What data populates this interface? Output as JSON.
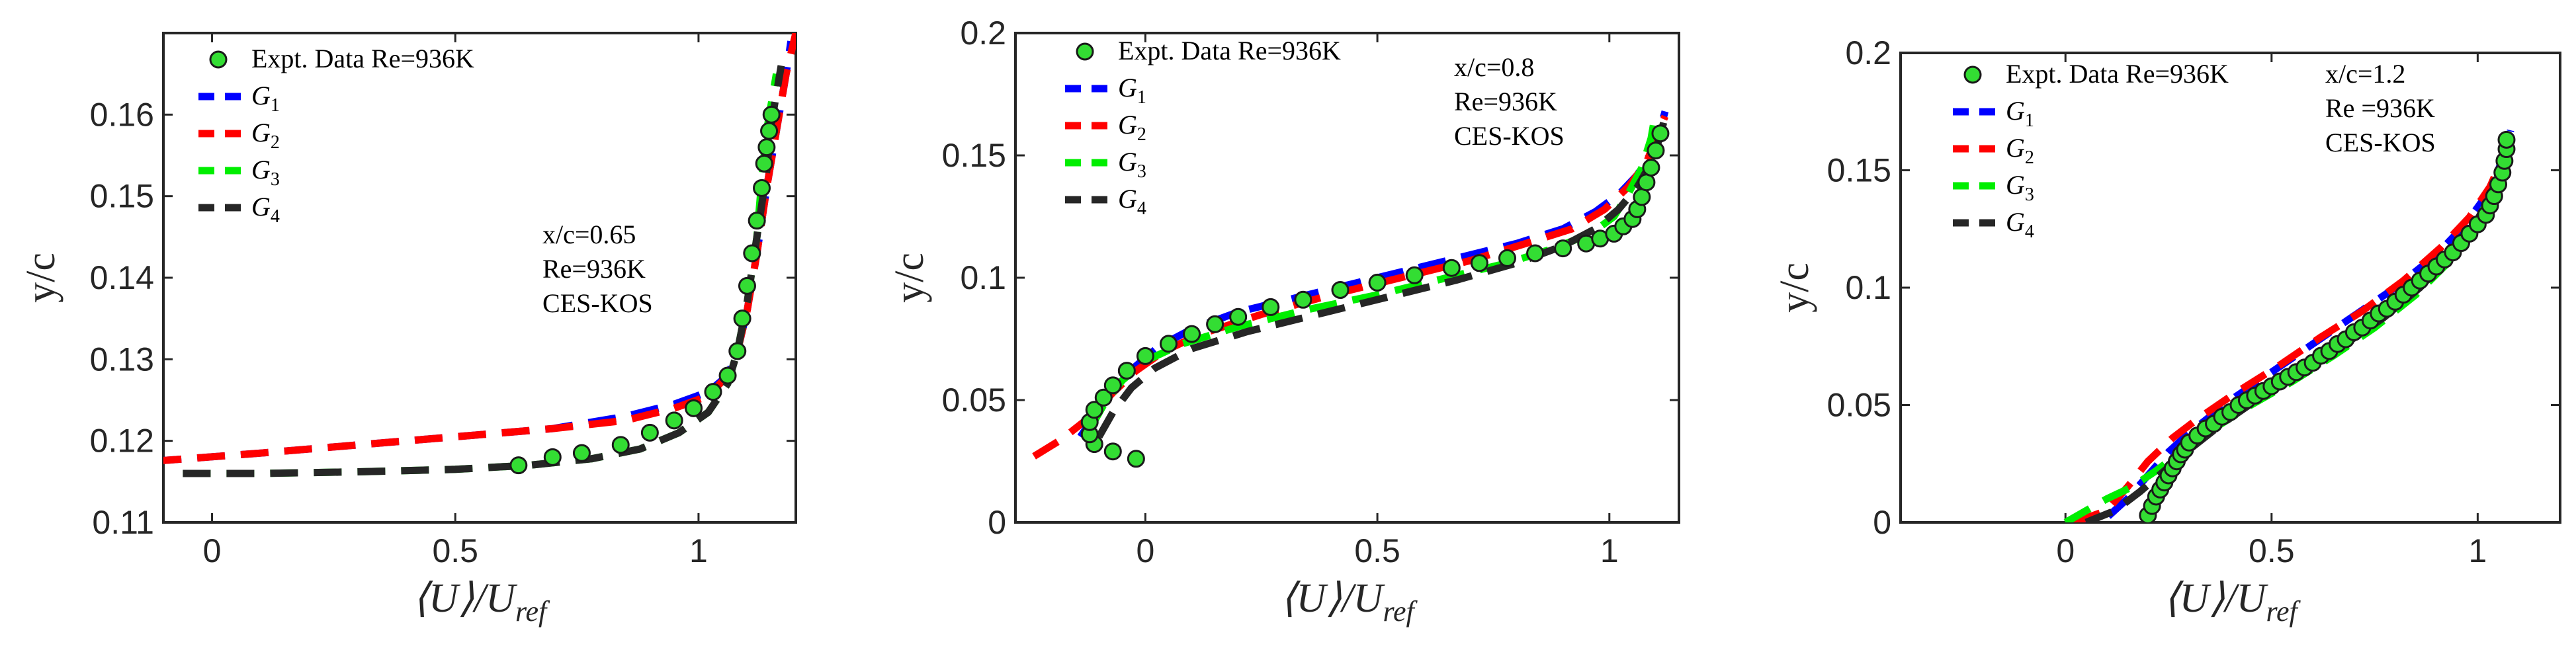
{
  "chart_data": [
    {
      "type": "line",
      "xlabel": "⟨U⟩/U",
      "xlabel_sub": "ref",
      "ylabel": "y/c",
      "xlim": [
        -0.1,
        1.2
      ],
      "ylim": [
        0.11,
        0.17
      ],
      "xticks": [
        "0",
        "0.5",
        "1"
      ],
      "yticks": [
        "0.11",
        "0.12",
        "0.13",
        "0.14",
        "0.15",
        "0.16"
      ],
      "annotation": [
        "x/c=0.65",
        "Re=936K",
        "CES-KOS"
      ],
      "legend_position": "top-left",
      "experiment": {
        "name": "Expt. Data Re=936K",
        "x": [
          0.63,
          0.7,
          0.76,
          0.84,
          0.9,
          0.95,
          0.99,
          1.03,
          1.06,
          1.08,
          1.09,
          1.1,
          1.11,
          1.12,
          1.13,
          1.135,
          1.14,
          1.145,
          1.15
        ],
        "y": [
          0.117,
          0.118,
          0.1185,
          0.1195,
          0.121,
          0.1225,
          0.124,
          0.126,
          0.128,
          0.131,
          0.135,
          0.139,
          0.143,
          0.147,
          0.151,
          0.154,
          0.156,
          0.158,
          0.16
        ]
      },
      "series": [
        {
          "name": "G",
          "sub": "1",
          "color": "#0000ff",
          "x": [
            -0.12,
            0.1,
            0.3,
            0.5,
            0.7,
            0.85,
            0.95,
            1.02,
            1.06,
            1.08,
            1.1,
            1.12,
            1.14,
            1.16,
            1.18,
            1.19
          ],
          "y": [
            0.1175,
            0.1185,
            0.1195,
            0.1205,
            0.1215,
            0.123,
            0.1245,
            0.126,
            0.128,
            0.131,
            0.136,
            0.143,
            0.151,
            0.158,
            0.165,
            0.169
          ]
        },
        {
          "name": "G",
          "sub": "2",
          "color": "#ff0000",
          "x": [
            -0.12,
            0.1,
            0.3,
            0.5,
            0.7,
            0.85,
            0.95,
            1.02,
            1.06,
            1.08,
            1.1,
            1.12,
            1.14,
            1.16,
            1.18,
            1.2
          ],
          "y": [
            0.1175,
            0.1185,
            0.1195,
            0.1205,
            0.1215,
            0.1225,
            0.124,
            0.1255,
            0.128,
            0.131,
            0.136,
            0.143,
            0.151,
            0.158,
            0.165,
            0.17
          ]
        },
        {
          "name": "G",
          "sub": "3",
          "color": "#00ee00",
          "x": [
            -0.06,
            0.1,
            0.3,
            0.5,
            0.65,
            0.78,
            0.88,
            0.96,
            1.02,
            1.06,
            1.08,
            1.1,
            1.12,
            1.13,
            1.14,
            1.16
          ],
          "y": [
            0.116,
            0.116,
            0.1162,
            0.1165,
            0.117,
            0.1178,
            0.119,
            0.121,
            0.1235,
            0.127,
            0.131,
            0.137,
            0.145,
            0.152,
            0.158,
            0.165
          ]
        },
        {
          "name": "G",
          "sub": "4",
          "color": "#262626",
          "x": [
            -0.06,
            0.1,
            0.3,
            0.5,
            0.65,
            0.78,
            0.88,
            0.96,
            1.02,
            1.06,
            1.08,
            1.1,
            1.12,
            1.14,
            1.15,
            1.17
          ],
          "y": [
            0.116,
            0.116,
            0.1162,
            0.1165,
            0.117,
            0.1178,
            0.119,
            0.121,
            0.1235,
            0.127,
            0.131,
            0.137,
            0.145,
            0.153,
            0.159,
            0.166
          ]
        }
      ]
    },
    {
      "type": "line",
      "xlabel": "⟨U⟩/U",
      "xlabel_sub": "ref",
      "ylabel": "y/c",
      "xlim": [
        -0.28,
        1.15
      ],
      "ylim": [
        0,
        0.2
      ],
      "xticks": [
        "0",
        "0.5",
        "1"
      ],
      "yticks": [
        "0",
        "0.05",
        "0.1",
        "0.15",
        "0.2"
      ],
      "annotation": [
        "x/c=0.8",
        "Re=936K",
        "CES-KOS"
      ],
      "legend_position": "top-left",
      "experiment": {
        "name": "Expt. Data Re=936K",
        "x": [
          -0.02,
          -0.07,
          -0.11,
          -0.12,
          -0.12,
          -0.11,
          -0.09,
          -0.07,
          -0.04,
          0.0,
          0.05,
          0.1,
          0.15,
          0.2,
          0.27,
          0.34,
          0.42,
          0.5,
          0.58,
          0.66,
          0.72,
          0.78,
          0.84,
          0.9,
          0.95,
          0.98,
          1.01,
          1.03,
          1.05,
          1.06,
          1.07,
          1.08,
          1.09,
          1.1,
          1.11
        ],
        "y": [
          0.026,
          0.029,
          0.032,
          0.036,
          0.041,
          0.046,
          0.051,
          0.056,
          0.062,
          0.068,
          0.073,
          0.077,
          0.081,
          0.084,
          0.088,
          0.091,
          0.095,
          0.098,
          0.101,
          0.104,
          0.106,
          0.108,
          0.11,
          0.112,
          0.114,
          0.116,
          0.118,
          0.121,
          0.124,
          0.128,
          0.133,
          0.139,
          0.145,
          0.152,
          0.159
        ]
      },
      "series": [
        {
          "name": "G",
          "sub": "1",
          "color": "#0000ff",
          "x": [
            -0.14,
            -0.1,
            -0.06,
            -0.02,
            0.03,
            0.1,
            0.2,
            0.35,
            0.5,
            0.65,
            0.8,
            0.9,
            0.97,
            1.02,
            1.06,
            1.09,
            1.11,
            1.12
          ],
          "y": [
            0.035,
            0.046,
            0.056,
            0.064,
            0.072,
            0.079,
            0.086,
            0.093,
            0.1,
            0.107,
            0.114,
            0.12,
            0.127,
            0.134,
            0.142,
            0.151,
            0.161,
            0.168
          ]
        },
        {
          "name": "G",
          "sub": "2",
          "color": "#ff0000",
          "x": [
            -0.24,
            -0.18,
            -0.12,
            -0.07,
            -0.02,
            0.04,
            0.12,
            0.25,
            0.4,
            0.55,
            0.7,
            0.82,
            0.92,
            0.99,
            1.04,
            1.08,
            1.1,
            1.12
          ],
          "y": [
            0.027,
            0.034,
            0.043,
            0.053,
            0.062,
            0.07,
            0.077,
            0.085,
            0.093,
            0.1,
            0.107,
            0.114,
            0.12,
            0.128,
            0.137,
            0.147,
            0.157,
            0.166
          ]
        },
        {
          "name": "G",
          "sub": "3",
          "color": "#00ee00",
          "x": [
            -0.12,
            -0.09,
            -0.05,
            0.0,
            0.08,
            0.2,
            0.35,
            0.5,
            0.65,
            0.78,
            0.88,
            0.96,
            1.01,
            1.04,
            1.07,
            1.09,
            1.1
          ],
          "y": [
            0.038,
            0.048,
            0.058,
            0.066,
            0.073,
            0.08,
            0.087,
            0.093,
            0.1,
            0.106,
            0.112,
            0.118,
            0.125,
            0.134,
            0.145,
            0.157,
            0.168
          ]
        },
        {
          "name": "G",
          "sub": "4",
          "color": "#262626",
          "x": [
            -0.1,
            -0.07,
            -0.03,
            0.02,
            0.1,
            0.22,
            0.37,
            0.52,
            0.67,
            0.8,
            0.9,
            0.97,
            1.02,
            1.06,
            1.09,
            1.11,
            1.12
          ],
          "y": [
            0.035,
            0.045,
            0.055,
            0.063,
            0.071,
            0.078,
            0.085,
            0.092,
            0.099,
            0.106,
            0.113,
            0.12,
            0.128,
            0.137,
            0.147,
            0.158,
            0.166
          ]
        }
      ]
    },
    {
      "type": "line",
      "xlabel": "⟨U⟩/U",
      "xlabel_sub": "ref",
      "ylabel": "y/c",
      "xlim": [
        -0.4,
        1.2
      ],
      "ylim": [
        0,
        0.2
      ],
      "xticks": [
        "0",
        "0.5",
        "1"
      ],
      "yticks": [
        "0",
        "0.05",
        "0.1",
        "0.15",
        "0.2"
      ],
      "annotation": [
        "x/c=1.2",
        "Re =936K",
        "CES-KOS"
      ],
      "legend_position": "top-left",
      "experiment": {
        "name": "Expt. Data Re=936K",
        "x": [
          0.2,
          0.21,
          0.22,
          0.23,
          0.24,
          0.25,
          0.26,
          0.27,
          0.28,
          0.29,
          0.3,
          0.32,
          0.34,
          0.36,
          0.38,
          0.4,
          0.42,
          0.44,
          0.46,
          0.48,
          0.5,
          0.52,
          0.54,
          0.56,
          0.58,
          0.6,
          0.62,
          0.64,
          0.66,
          0.68,
          0.7,
          0.72,
          0.74,
          0.76,
          0.78,
          0.8,
          0.82,
          0.84,
          0.86,
          0.88,
          0.9,
          0.92,
          0.94,
          0.96,
          0.98,
          1.0,
          1.02,
          1.03,
          1.04,
          1.05,
          1.06,
          1.065,
          1.07,
          1.07
        ],
        "y": [
          0.003,
          0.007,
          0.011,
          0.014,
          0.017,
          0.02,
          0.023,
          0.026,
          0.029,
          0.031,
          0.034,
          0.037,
          0.04,
          0.042,
          0.045,
          0.047,
          0.05,
          0.052,
          0.054,
          0.056,
          0.058,
          0.06,
          0.062,
          0.064,
          0.066,
          0.068,
          0.071,
          0.073,
          0.076,
          0.078,
          0.081,
          0.083,
          0.086,
          0.089,
          0.091,
          0.094,
          0.097,
          0.1,
          0.103,
          0.106,
          0.109,
          0.112,
          0.115,
          0.119,
          0.123,
          0.127,
          0.131,
          0.135,
          0.139,
          0.144,
          0.149,
          0.154,
          0.159,
          0.163
        ]
      },
      "series": [
        {
          "name": "G",
          "sub": "1",
          "color": "#0000ff",
          "x": [
            0.0,
            0.1,
            0.15,
            0.2,
            0.25,
            0.3,
            0.4,
            0.5,
            0.6,
            0.7,
            0.8,
            0.9,
            0.97,
            1.02,
            1.05,
            1.07,
            1.08
          ],
          "y": [
            0.0,
            0.002,
            0.01,
            0.02,
            0.03,
            0.038,
            0.052,
            0.064,
            0.076,
            0.088,
            0.1,
            0.114,
            0.127,
            0.139,
            0.15,
            0.16,
            0.167
          ]
        },
        {
          "name": "G",
          "sub": "2",
          "color": "#ff0000",
          "x": [
            0.02,
            0.1,
            0.15,
            0.2,
            0.26,
            0.32,
            0.42,
            0.52,
            0.62,
            0.72,
            0.82,
            0.91,
            0.98,
            1.03,
            1.06,
            1.08
          ],
          "y": [
            0.0,
            0.005,
            0.015,
            0.026,
            0.036,
            0.044,
            0.056,
            0.067,
            0.079,
            0.09,
            0.103,
            0.117,
            0.13,
            0.143,
            0.155,
            0.165
          ]
        },
        {
          "name": "G",
          "sub": "3",
          "color": "#00ee00",
          "x": [
            0.0,
            0.04,
            0.1,
            0.16,
            0.22,
            0.28,
            0.36,
            0.45,
            0.55,
            0.65,
            0.75,
            0.85,
            0.93,
            0.99,
            1.03,
            1.06,
            1.08
          ],
          "y": [
            0.0,
            0.004,
            0.01,
            0.015,
            0.022,
            0.03,
            0.04,
            0.05,
            0.06,
            0.071,
            0.083,
            0.097,
            0.111,
            0.125,
            0.139,
            0.152,
            0.164
          ]
        },
        {
          "name": "G",
          "sub": "4",
          "color": "#262626",
          "x": [
            0.05,
            0.12,
            0.18,
            0.24,
            0.3,
            0.38,
            0.47,
            0.57,
            0.67,
            0.77,
            0.86,
            0.94,
            1.0,
            1.04,
            1.07,
            1.08
          ],
          "y": [
            0.0,
            0.005,
            0.013,
            0.022,
            0.031,
            0.042,
            0.053,
            0.064,
            0.075,
            0.087,
            0.1,
            0.115,
            0.129,
            0.143,
            0.155,
            0.164
          ]
        }
      ]
    }
  ]
}
